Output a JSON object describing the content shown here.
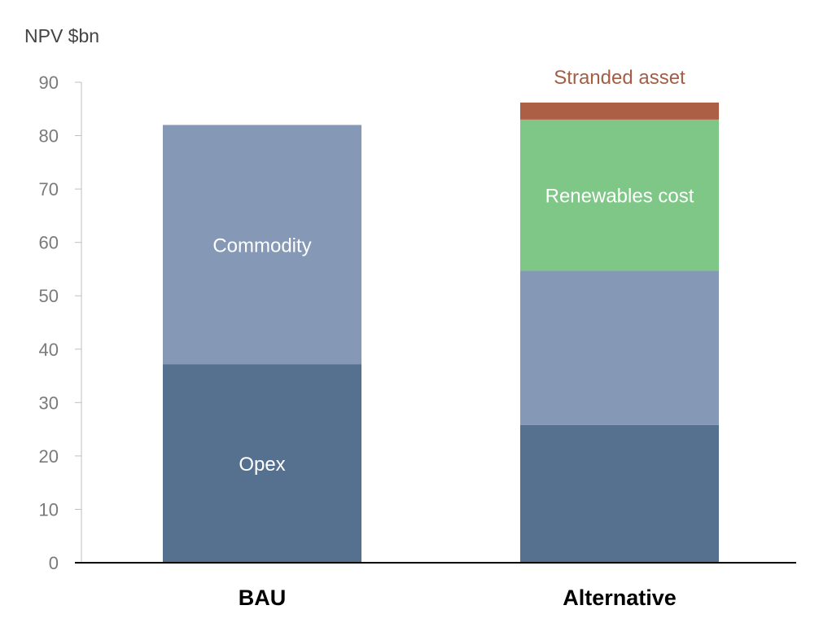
{
  "chart_data": {
    "type": "bar",
    "stacked": true,
    "y_unit_label": "NPV $bn",
    "categories": [
      "BAU",
      "Alternative"
    ],
    "series": [
      {
        "key": "opex",
        "values": [
          37.2,
          25.8
        ],
        "color": "#56708f",
        "labels": [
          "Opex",
          ""
        ]
      },
      {
        "key": "commodity",
        "values": [
          44.8,
          28.9
        ],
        "color": "#8598b6",
        "labels": [
          "Commodity",
          ""
        ]
      },
      {
        "key": "renewables",
        "values": [
          0,
          28.3
        ],
        "color": "#7ec787",
        "labels": [
          "",
          "Renewables cost"
        ]
      },
      {
        "key": "stranded",
        "values": [
          0,
          3.2
        ],
        "color": "#ad5f46",
        "labels": [
          "",
          "Stranded asset"
        ]
      }
    ],
    "ylim": [
      0,
      90
    ],
    "yticks": [
      0,
      10,
      20,
      30,
      40,
      50,
      60,
      70,
      80,
      90
    ],
    "grid": false,
    "legend": "none"
  }
}
